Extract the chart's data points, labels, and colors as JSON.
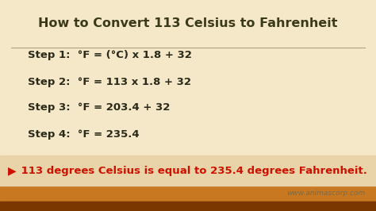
{
  "title": "How to Convert 113 Celsius to Fahrenheit",
  "bg_color": "#f5e8c8",
  "title_color": "#3a3a1a",
  "step_color": "#2a2a1a",
  "steps": [
    "Step 1:  °F = (°C) x 1.8 + 32",
    "Step 2:  °F = 113 x 1.8 + 32",
    "Step 3:  °F = 203.4 + 32",
    "Step 4:  °F = 235.4"
  ],
  "conclusion_arrow": "▶",
  "conclusion": " 113 degrees Celsius is equal to 235.4 degrees Fahrenheit.",
  "conclusion_color": "#cc1100",
  "bottom_bar_top_color": "#c87820",
  "bottom_bar_bot_color": "#7a3800",
  "watermark": "www.animascorp.com",
  "watermark_color": "#7a6a4a",
  "line_color": "#b0a080",
  "title_fontsize": 11.5,
  "step_fontsize": 9.5,
  "conclusion_fontsize": 9.5,
  "watermark_fontsize": 6.5,
  "fig_w": 4.74,
  "fig_h": 2.66,
  "dpi": 100
}
